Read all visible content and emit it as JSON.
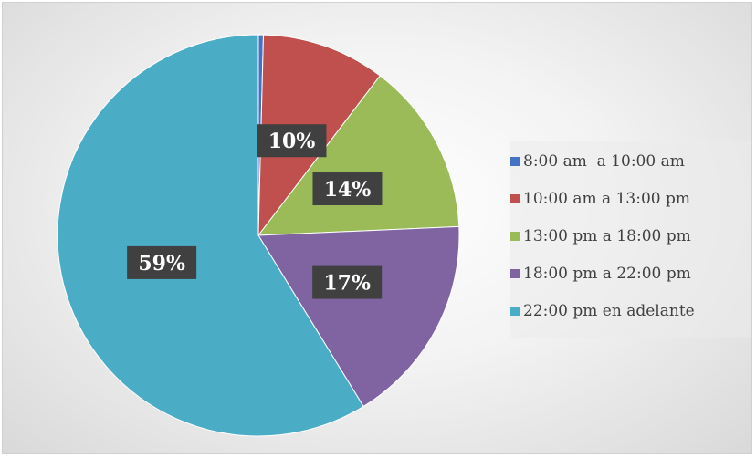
{
  "chart_data": {
    "type": "pie",
    "categories": [
      "8:00 am  a 10:00 am",
      "10:00 am a 13:00 pm",
      "13:00 pm a 18:00 pm",
      "18:00 pm a 22:00 pm",
      "22:00 pm en adelante"
    ],
    "values": [
      0.4,
      10,
      14,
      17,
      59
    ],
    "data_labels": [
      "",
      "10%",
      "14%",
      "17%",
      "59%"
    ],
    "colors": [
      "#4472C4",
      "#C0504D",
      "#9BBB59",
      "#8064A2",
      "#4BACC6"
    ],
    "legend_position": "right",
    "title": ""
  }
}
